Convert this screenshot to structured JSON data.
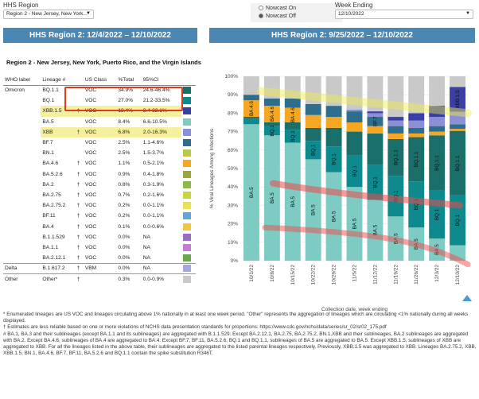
{
  "controls": {
    "region_label": "HHS Region",
    "region_value": "Region 2 - New Jersey, New York...",
    "nowcast_on": "Nowcast On",
    "nowcast_off": "Nowcast Off",
    "week_label": "Week Ending",
    "week_value": "12/10/2022"
  },
  "left_panel": {
    "title": "HHS Region 2: 12/4/2022 – 12/10/2022",
    "subtitle": "Region 2 - New Jersey, New York, Puerto Rico, and the Virgin Islands",
    "headers": [
      "WHO label",
      "Lineage #",
      "US Class",
      "%Total",
      "95%CI"
    ],
    "rows": [
      {
        "who": "Omicron",
        "lineage": "BQ.1.1",
        "mark": "",
        "cls": "VOC",
        "pct": "34.9%",
        "ci": "24.6-46.4%",
        "color": "#1a6f6b",
        "hl": false
      },
      {
        "who": "",
        "lineage": "BQ.1",
        "mark": "",
        "cls": "VOC",
        "pct": "27.0%",
        "ci": "21.2-33.5%",
        "color": "#0e8a8e",
        "hl": false
      },
      {
        "who": "",
        "lineage": "XBB.1.5",
        "mark": "†",
        "cls": "VOC",
        "pct": "13.4%",
        "ci": "3.4-32.1%",
        "color": "#3a3fa6",
        "hl": true
      },
      {
        "who": "",
        "lineage": "BA.5",
        "mark": "",
        "cls": "VOC",
        "pct": "8.4%",
        "ci": "6.6-10.5%",
        "color": "#7ecbc3",
        "hl": false
      },
      {
        "who": "",
        "lineage": "XBB",
        "mark": "†",
        "cls": "VOC",
        "pct": "6.8%",
        "ci": "2.0-16.3%",
        "color": "#8b8fd6",
        "hl": true
      },
      {
        "who": "",
        "lineage": "BF.7",
        "mark": "",
        "cls": "VOC",
        "pct": "2.5%",
        "ci": "1.1-4.6%",
        "color": "#2d6e8c",
        "hl": false
      },
      {
        "who": "",
        "lineage": "BN.1",
        "mark": "",
        "cls": "VOC",
        "pct": "2.5%",
        "ci": "1.5-3.7%",
        "color": "#b9c84a",
        "hl": false
      },
      {
        "who": "",
        "lineage": "BA.4.6",
        "mark": "†",
        "cls": "VOC",
        "pct": "1.1%",
        "ci": "0.5-2.1%",
        "color": "#f5a623",
        "hl": false
      },
      {
        "who": "",
        "lineage": "BA.5.2.6",
        "mark": "†",
        "cls": "VOC",
        "pct": "0.9%",
        "ci": "0.4-1.8%",
        "color": "#9aa53a",
        "hl": false
      },
      {
        "who": "",
        "lineage": "BA.2",
        "mark": "†",
        "cls": "VOC",
        "pct": "0.8%",
        "ci": "0.3-1.9%",
        "color": "#8db84a",
        "hl": false
      },
      {
        "who": "",
        "lineage": "BA.2.75",
        "mark": "†",
        "cls": "VOC",
        "pct": "0.7%",
        "ci": "0.2-1.6%",
        "color": "#c9d63a",
        "hl": false
      },
      {
        "who": "",
        "lineage": "BA.2.75.2",
        "mark": "†",
        "cls": "VOC",
        "pct": "0.2%",
        "ci": "0.0-1.1%",
        "color": "#e8e25a",
        "hl": false
      },
      {
        "who": "",
        "lineage": "BF.11",
        "mark": "†",
        "cls": "VOC",
        "pct": "0.2%",
        "ci": "0.0-1.1%",
        "color": "#5fa8d3",
        "hl": false
      },
      {
        "who": "",
        "lineage": "BA.4",
        "mark": "†",
        "cls": "VOC",
        "pct": "0.1%",
        "ci": "0.0-0.6%",
        "color": "#f2c53d",
        "hl": false
      },
      {
        "who": "",
        "lineage": "B.1.1.529",
        "mark": "†",
        "cls": "VOC",
        "pct": "0.0%",
        "ci": "NA",
        "color": "#9c6ec2",
        "hl": false
      },
      {
        "who": "",
        "lineage": "BA.1.1",
        "mark": "†",
        "cls": "VOC",
        "pct": "0.0%",
        "ci": "NA",
        "color": "#c87ad6",
        "hl": false
      },
      {
        "who": "",
        "lineage": "BA.2.12.1",
        "mark": "†",
        "cls": "VOC",
        "pct": "0.0%",
        "ci": "NA",
        "color": "#6aa84f",
        "hl": false
      },
      {
        "who": "Delta",
        "lineage": "B.1.617.2",
        "mark": "†",
        "cls": "VBM",
        "pct": "0.0%",
        "ci": "NA",
        "color": "#a6a6e0",
        "hl": false,
        "sep": true
      },
      {
        "who": "Other",
        "lineage": "Other*",
        "mark": "†",
        "cls": "",
        "pct": "0.3%",
        "ci": "0.0-0.9%",
        "color": "#c9c9c9",
        "hl": false,
        "sep": true
      }
    ]
  },
  "right_panel": {
    "title": "HHS Region 2: 9/25/2022 – 12/10/2022",
    "ylabel": "% Viral Lineages Among Infections",
    "xlabel": "Collection date, week ending"
  },
  "chart_data": {
    "type": "bar",
    "stacked": true,
    "categories": [
      "10/1/22",
      "10/8/22",
      "10/15/22",
      "10/22/22",
      "10/29/22",
      "11/5/22",
      "11/12/22",
      "11/19/22",
      "11/26/22",
      "12/3/22",
      "12/10/22"
    ],
    "yticks": [
      "0%",
      "10%",
      "20%",
      "30%",
      "40%",
      "50%",
      "60%",
      "70%",
      "80%",
      "90%",
      "100%"
    ],
    "ylim": [
      0,
      100
    ],
    "series": [
      {
        "name": "BA.5",
        "color": "#7ecbc3",
        "values": [
          74,
          68,
          64,
          55,
          48,
          40,
          33,
          24,
          18,
          12,
          8.4
        ]
      },
      {
        "name": "BQ.1",
        "color": "#0e8a8e",
        "values": [
          3,
          5,
          7,
          10,
          14,
          17,
          19,
          22,
          25,
          26,
          27
        ]
      },
      {
        "name": "BQ.1.1",
        "color": "#1a6f6b",
        "values": [
          1,
          2,
          4,
          7,
          10,
          13,
          17,
          20,
          24,
          30,
          35
        ]
      },
      {
        "name": "BA.4.6",
        "color": "#f5a623",
        "values": [
          9,
          9,
          8,
          7,
          6,
          5,
          4,
          3,
          2,
          2,
          1.1
        ]
      },
      {
        "name": "BF.7",
        "color": "#2d6e8c",
        "values": [
          3,
          4,
          5,
          6,
          6,
          6,
          5,
          4,
          3,
          3,
          2.5
        ]
      },
      {
        "name": "XBB",
        "color": "#8b8fd6",
        "values": [
          0,
          0,
          0,
          0,
          0,
          1,
          2,
          3,
          4,
          5,
          6.8
        ]
      },
      {
        "name": "XBB.1.5",
        "color": "#3a3fa6",
        "values": [
          0,
          0,
          0,
          0,
          0,
          0,
          1,
          2,
          4,
          6,
          13.4
        ]
      },
      {
        "name": "Other",
        "color": "#c9c9c9",
        "values": [
          10,
          12,
          12,
          15,
          16,
          18,
          19,
          22,
          20,
          16,
          5.8
        ]
      }
    ],
    "bar_labels": [
      [
        "BA.5",
        "BA.4.6"
      ],
      [
        "BA.5",
        "BQ.1",
        "BA.4.6"
      ],
      [
        "BA.5",
        "BQ.1",
        "BA.4.6"
      ],
      [
        "BA.5",
        "BQ.1"
      ],
      [
        "BA.5",
        "BQ.1"
      ],
      [
        "BA.5",
        "BQ.1"
      ],
      [
        "BA.5",
        "BQ.1",
        "BF.7"
      ],
      [
        "BA.5",
        "BQ.1.1",
        "BQ.1"
      ],
      [
        "BA.5",
        "BQ.1.1",
        "BQ.1"
      ],
      [
        "BA.5",
        "BQ.1.1",
        "BQ.1"
      ],
      [
        "BQ.1",
        "BQ.1.1",
        "XBB.1.5"
      ]
    ]
  },
  "footnotes": [
    "*      Enumerated lineages are US VOC and lineages circulating above 1% nationally in at least one week period. \"Other\" represents the aggregation of lineages which are circulating <1% nationally during all weeks displayed.",
    "†      Estimates are less reliable based on one or more violations of NCHS data presentation standards for proportions: https://www.cdc.gov/nchs/data/series/sr_02/sr02_175.pdf",
    "#      BA.1, BA.3 and their sublineages (except BA.1.1 and its sublineages) are aggregated with B.1.1.529. Except BA.2.12.1, BA.2.75, BA.2.75.2, BN.1,XBB and their sublineages, BA.2 sublineages are aggregated with BA.2. Except BA.4.6, sublineages of BA.4 are aggregated to BA.4. Except BF.7, BF.11, BA.5.2.6, BQ.1 and BQ.1.1, sublineages of BA.5 are aggregated to BA.5. Except XBB.1.5, sublineages of XBB are aggregated to XBB. For all the lineages listed in the above table, their sublineages are aggregated to the listed parental lineages respectively. Previously, XBB.1.5 was aggregated to XBB. Lineages BA.2.75.2, XBB, XBB.1.5, BN.1, BA.4.6, BF.7, BF.11, BA.5.2.6 and BQ.1.1 contain the spike substitution R346T."
  ]
}
